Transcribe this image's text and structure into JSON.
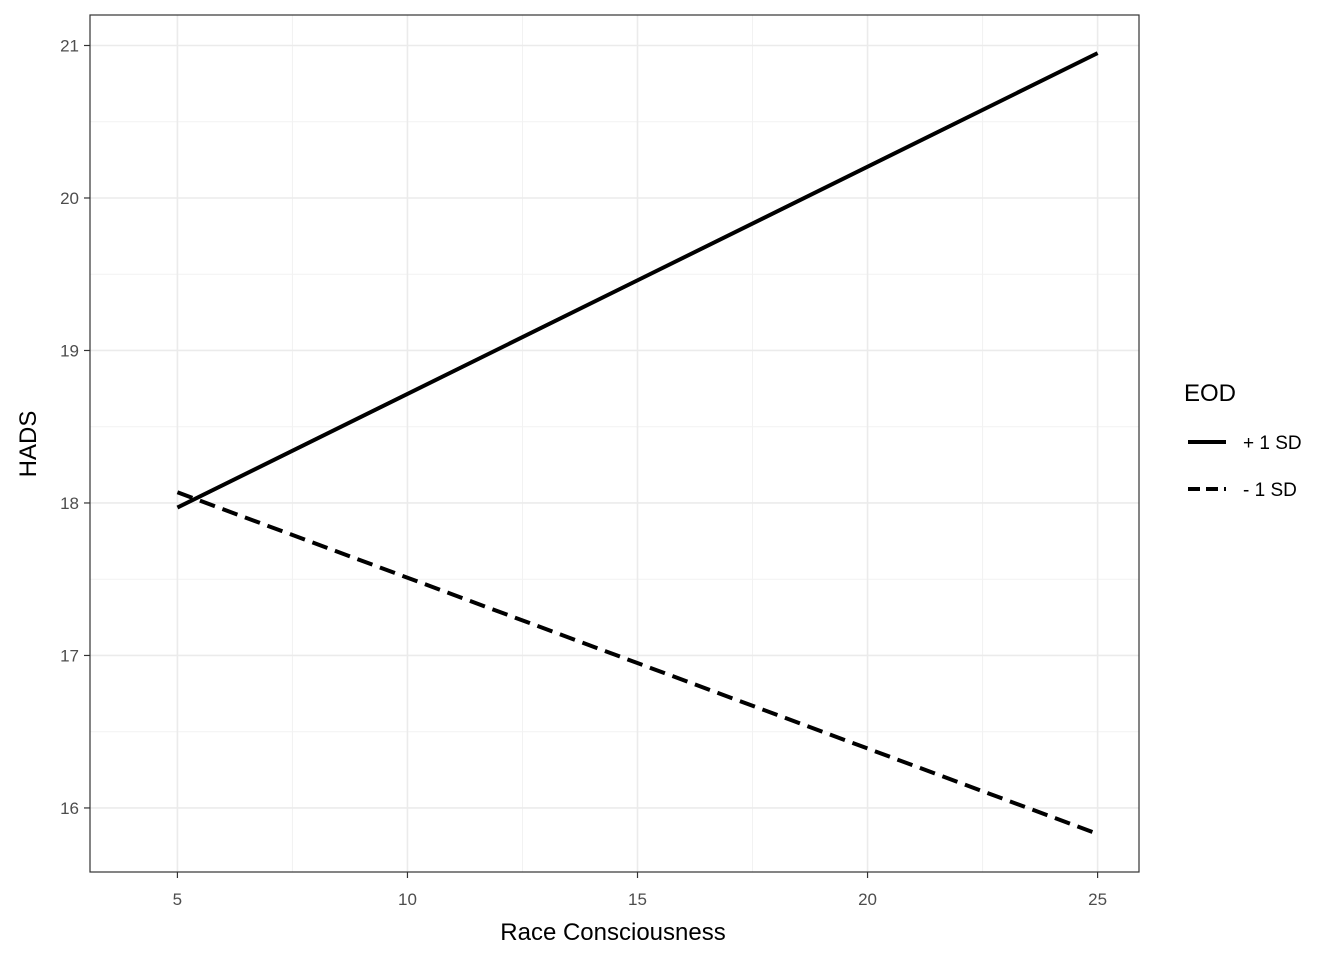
{
  "chart_data": {
    "type": "line",
    "xlabel": "Race Consciousness",
    "ylabel": "HADS",
    "xlim": [
      3.1,
      25.9
    ],
    "ylim": [
      15.58,
      21.2
    ],
    "x_ticks": [
      5,
      10,
      15,
      20,
      25
    ],
    "x_tick_labels": [
      "5",
      "10",
      "15",
      "20",
      "25"
    ],
    "y_ticks": [
      16,
      17,
      18,
      19,
      20,
      21
    ],
    "y_tick_labels": [
      "16",
      "17",
      "18",
      "19",
      "20",
      "21"
    ],
    "grid": true,
    "legend": {
      "title": "EOD",
      "position": "right"
    },
    "series": [
      {
        "name": "+ 1 SD",
        "style": "solid",
        "color": "#000000",
        "x": [
          5,
          25
        ],
        "y": [
          17.97,
          20.95
        ]
      },
      {
        "name": "- 1 SD",
        "style": "dashed",
        "color": "#000000",
        "x": [
          5,
          25
        ],
        "y": [
          18.07,
          15.83
        ]
      }
    ]
  }
}
